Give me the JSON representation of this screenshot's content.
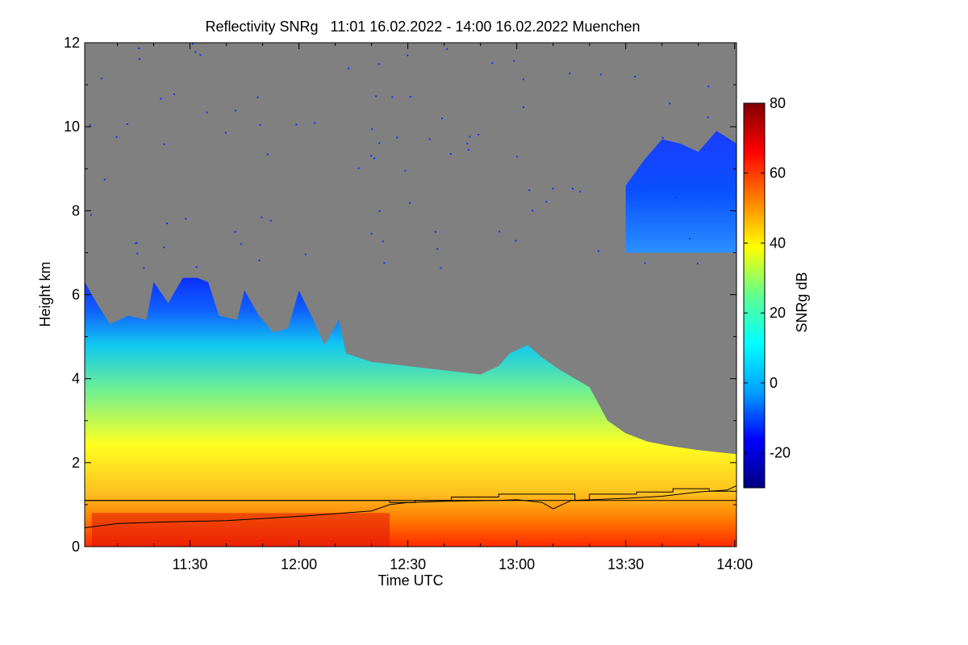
{
  "chart_data": {
    "type": "heatmap",
    "title": "Reflectivity SNRg   11:01 16.02.2022 - 14:00 16.02.2022 Muenchen",
    "xlabel": "Time UTC",
    "ylabel": "Height km",
    "colorbar_label": "SNRg dB",
    "x_start_minutes": 661,
    "x_end_minutes": 840.5,
    "x_tick_values": [
      690,
      720,
      750,
      780,
      810,
      840
    ],
    "x_ticks": [
      "11:30",
      "12:00",
      "12:30",
      "13:00",
      "13:30",
      "14:00"
    ],
    "ylim": [
      0,
      12
    ],
    "y_ticks": [
      0,
      2,
      4,
      6,
      8,
      10,
      12
    ],
    "clim": [
      -30,
      80
    ],
    "colorbar_ticks": [
      -20,
      0,
      20,
      40,
      60,
      80
    ],
    "background_color": "#808080",
    "colormap": [
      "#000080",
      "#0000ff",
      "#00a0ff",
      "#00ffff",
      "#60ff90",
      "#ffff00",
      "#ff8000",
      "#ff0000",
      "#800000"
    ],
    "cloud_top_km": [
      [
        661,
        6.3
      ],
      [
        665,
        5.7
      ],
      [
        668,
        5.3
      ],
      [
        673,
        5.5
      ],
      [
        678,
        5.4
      ],
      [
        680,
        6.3
      ],
      [
        684,
        5.8
      ],
      [
        688,
        6.4
      ],
      [
        692,
        6.4
      ],
      [
        695,
        6.3
      ],
      [
        698,
        5.5
      ],
      [
        703,
        5.4
      ],
      [
        705,
        6.1
      ],
      [
        709,
        5.5
      ],
      [
        713,
        5.1
      ],
      [
        717,
        5.2
      ],
      [
        720,
        6.1
      ],
      [
        724,
        5.4
      ],
      [
        727,
        4.8
      ],
      [
        731,
        5.4
      ],
      [
        733,
        4.6
      ],
      [
        740,
        4.4
      ],
      [
        750,
        4.3
      ],
      [
        760,
        4.2
      ],
      [
        770,
        4.1
      ],
      [
        775,
        4.3
      ],
      [
        778,
        4.6
      ],
      [
        783,
        4.8
      ],
      [
        787,
        4.5
      ],
      [
        792,
        4.2
      ],
      [
        800,
        3.8
      ],
      [
        805,
        3.0
      ],
      [
        810,
        2.7
      ],
      [
        816,
        2.5
      ],
      [
        822,
        2.4
      ],
      [
        830,
        2.3
      ],
      [
        840.5,
        2.2
      ]
    ],
    "upper_cloud": {
      "x_range": [
        810,
        840.5
      ],
      "base_km": 7.0,
      "top_km": [
        [
          810,
          8.6
        ],
        [
          815,
          9.2
        ],
        [
          820,
          9.7
        ],
        [
          825,
          9.6
        ],
        [
          830,
          9.4
        ],
        [
          835,
          9.9
        ],
        [
          840.5,
          9.6
        ]
      ]
    },
    "black_line_km": [
      [
        661,
        0.45
      ],
      [
        670,
        0.55
      ],
      [
        680,
        0.58
      ],
      [
        700,
        0.62
      ],
      [
        720,
        0.72
      ],
      [
        740,
        0.85
      ],
      [
        745,
        1.0
      ],
      [
        750,
        1.05
      ],
      [
        760,
        1.08
      ],
      [
        775,
        1.1
      ],
      [
        780,
        1.12
      ],
      [
        787,
        1.05
      ],
      [
        790,
        0.9
      ],
      [
        795,
        1.1
      ],
      [
        810,
        1.15
      ],
      [
        820,
        1.2
      ],
      [
        830,
        1.3
      ],
      [
        838,
        1.35
      ],
      [
        840.5,
        1.45
      ]
    ],
    "step_line_km": [
      [
        661,
        1.1
      ],
      [
        745,
        1.1
      ],
      [
        745,
        1.05
      ],
      [
        752,
        1.05
      ],
      [
        752,
        1.1
      ],
      [
        762,
        1.1
      ],
      [
        762,
        1.18
      ],
      [
        775,
        1.18
      ],
      [
        775,
        1.25
      ],
      [
        796,
        1.25
      ],
      [
        796,
        1.1
      ],
      [
        800,
        1.1
      ],
      [
        800,
        1.25
      ],
      [
        813,
        1.25
      ],
      [
        813,
        1.3
      ],
      [
        823,
        1.3
      ],
      [
        823,
        1.38
      ],
      [
        833,
        1.38
      ],
      [
        833,
        1.32
      ],
      [
        840.5,
        1.32
      ]
    ],
    "flat_line_km": [
      [
        661,
        1.1
      ],
      [
        840.5,
        1.1
      ]
    ]
  }
}
